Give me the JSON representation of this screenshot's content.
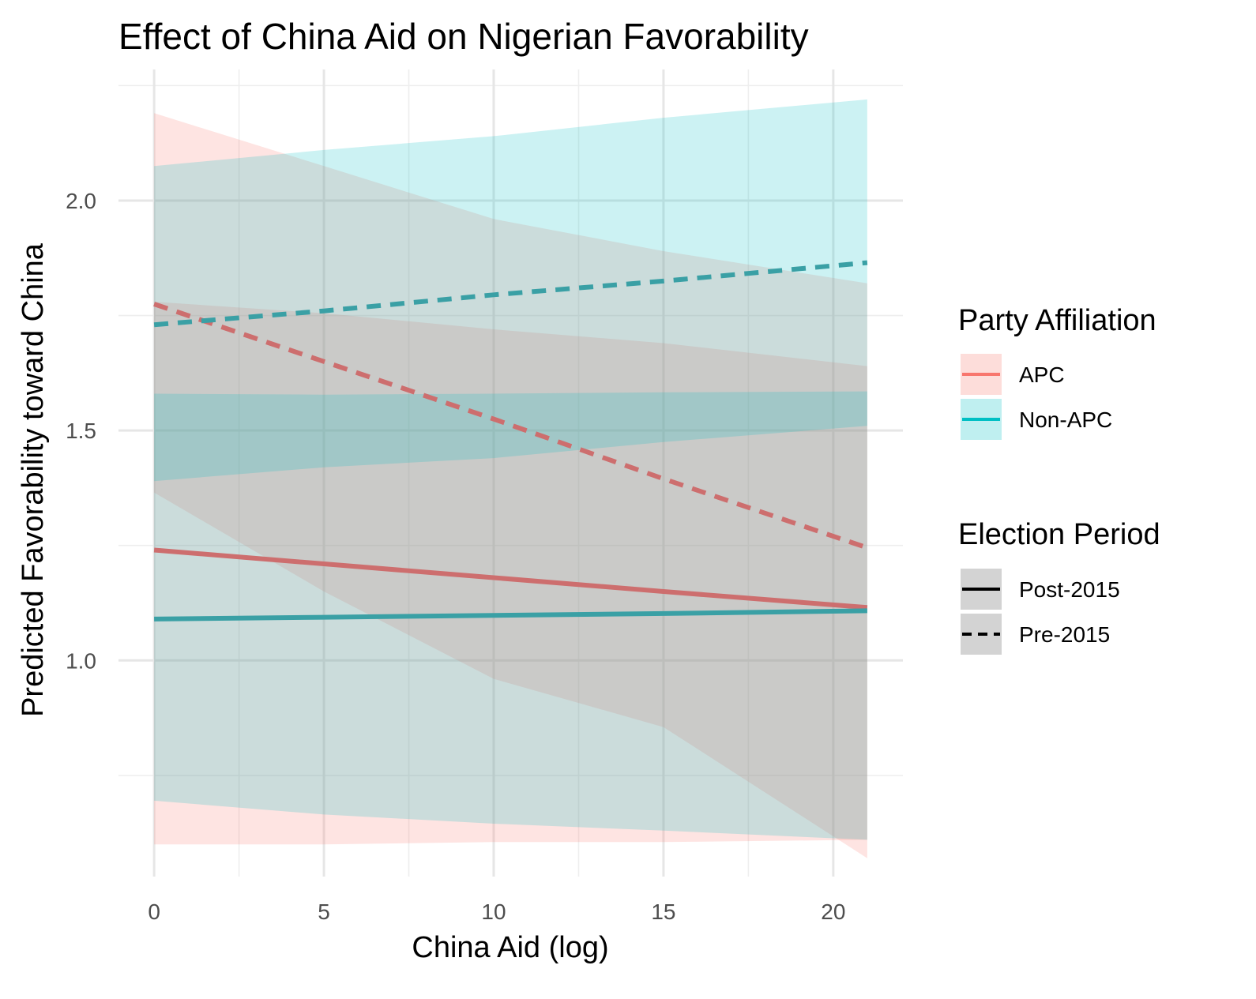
{
  "chart_data": {
    "type": "line",
    "title": "Effect of China Aid on Nigerian Favorability",
    "xlabel": "China Aid (log)",
    "ylabel": "Predicted Favorability toward China",
    "xlim": [
      -1.05,
      22.05
    ],
    "ylim": [
      0.53,
      2.285
    ],
    "x_ticks": [
      0,
      5,
      10,
      15,
      20
    ],
    "x_tick_labels": [
      "0",
      "5",
      "10",
      "15",
      "20"
    ],
    "y_ticks": [
      1.0,
      1.5,
      2.0
    ],
    "y_tick_labels": [
      "1.0",
      "1.5",
      "2.0"
    ],
    "y_minor_ticks": [
      0.75,
      1.25,
      1.75,
      2.25
    ],
    "x_minor_ticks": [
      2.5,
      7.5,
      12.5,
      17.5
    ],
    "grid": true,
    "colors": {
      "APC": "#F8766D",
      "Non-APC": "#00BFC4",
      "line_APC": "#CD6E6E",
      "line_NonAPC": "#3AA0A5"
    },
    "legend": {
      "position": "right",
      "groups": [
        {
          "title": "Party Affiliation",
          "entries": [
            "APC",
            "Non-APC"
          ]
        },
        {
          "title": "Election Period",
          "entries": [
            "Post-2015",
            "Pre-2015"
          ]
        }
      ]
    },
    "series": [
      {
        "party": "APC",
        "period": "Pre-2015",
        "linetype": "dashed",
        "x": [
          0,
          5,
          10,
          15,
          21
        ],
        "y": [
          1.775,
          1.65,
          1.525,
          1.395,
          1.245
        ],
        "lower": [
          1.365,
          1.15,
          0.96,
          0.855,
          0.57
        ],
        "upper": [
          2.19,
          2.075,
          1.96,
          1.89,
          1.82
        ]
      },
      {
        "party": "APC",
        "period": "Post-2015",
        "linetype": "solid",
        "x": [
          0,
          5,
          10,
          15,
          21
        ],
        "y": [
          1.24,
          1.21,
          1.18,
          1.15,
          1.115
        ],
        "lower": [
          0.6,
          0.6,
          0.605,
          0.605,
          0.61
        ],
        "upper": [
          1.78,
          1.755,
          1.72,
          1.69,
          1.64
        ]
      },
      {
        "party": "Non-APC",
        "period": "Pre-2015",
        "linetype": "dashed",
        "x": [
          0,
          5,
          10,
          15,
          21
        ],
        "y": [
          1.73,
          1.76,
          1.795,
          1.825,
          1.865
        ],
        "lower": [
          1.39,
          1.42,
          1.44,
          1.475,
          1.51
        ],
        "upper": [
          2.075,
          2.11,
          2.14,
          2.18,
          2.22
        ]
      },
      {
        "party": "Non-APC",
        "period": "Post-2015",
        "linetype": "solid",
        "x": [
          0,
          5,
          10,
          15,
          21
        ],
        "y": [
          1.09,
          1.094,
          1.098,
          1.102,
          1.108
        ],
        "lower": [
          0.695,
          0.665,
          0.645,
          0.63,
          0.61
        ],
        "upper": [
          1.58,
          1.578,
          1.58,
          1.583,
          1.585
        ]
      }
    ]
  }
}
